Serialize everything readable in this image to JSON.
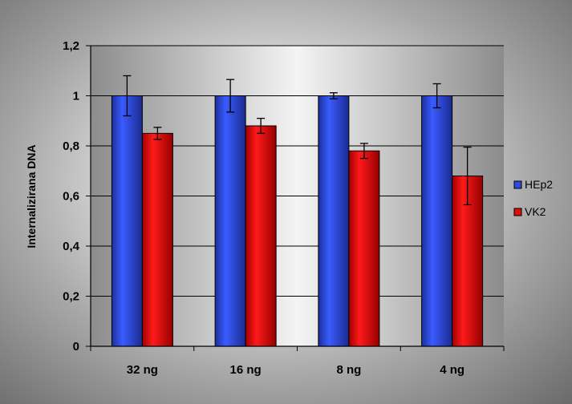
{
  "chart_data": {
    "type": "bar",
    "title": "",
    "xlabel": "",
    "ylabel": "Internalizirana DNA",
    "categories": [
      "32 ng",
      "16 ng",
      "8 ng",
      "4 ng"
    ],
    "series": [
      {
        "name": "HEp2",
        "color": "#2f4bdc",
        "values": [
          1,
          1,
          1,
          1
        ],
        "errors": [
          0.08,
          0.065,
          0.012,
          0.048
        ]
      },
      {
        "name": "VK2",
        "color": "#e00d0d",
        "values": [
          0.85,
          0.88,
          0.78,
          0.68
        ],
        "errors": [
          0.024,
          0.03,
          0.03,
          0.115
        ]
      }
    ],
    "ylim": [
      0,
      1.2
    ],
    "yticks": [
      0,
      0.2,
      0.4,
      0.6,
      0.8,
      1,
      1.2
    ],
    "ytick_labels": [
      "0",
      "0,2",
      "0,4",
      "0,6",
      "0,8",
      "1",
      "1,2"
    ],
    "grid": true,
    "legend_position": "right"
  }
}
